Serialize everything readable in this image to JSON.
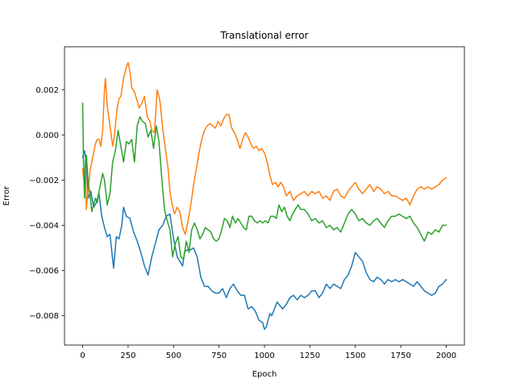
{
  "chart_data": {
    "type": "line",
    "title": "Translational error",
    "xlabel": "Epoch",
    "ylabel": "Error",
    "xlim": [
      -100,
      2100
    ],
    "ylim": [
      -0.0093,
      0.0039
    ],
    "xticks": [
      0,
      250,
      500,
      750,
      1000,
      1250,
      1500,
      1750,
      2000
    ],
    "xtick_labels": [
      "0",
      "250",
      "500",
      "750",
      "1000",
      "1250",
      "1500",
      "1750",
      "2000"
    ],
    "yticks": [
      -0.008,
      -0.006,
      -0.004,
      -0.002,
      0.0,
      0.002
    ],
    "ytick_labels": [
      "−0.008",
      "−0.006",
      "−0.004",
      "−0.002",
      "0.000",
      "0.002"
    ],
    "grid": false,
    "legend": false,
    "series": [
      {
        "color": "#1f77b4",
        "x": [
          0,
          10,
          20,
          30,
          45,
          60,
          75,
          90,
          105,
          120,
          135,
          150,
          170,
          185,
          200,
          215,
          225,
          240,
          260,
          280,
          300,
          320,
          340,
          360,
          380,
          400,
          420,
          440,
          460,
          480,
          500,
          520,
          535,
          550,
          560,
          570,
          590,
          610,
          630,
          650,
          670,
          690,
          710,
          730,
          750,
          770,
          790,
          810,
          830,
          850,
          870,
          890,
          910,
          930,
          950,
          970,
          990,
          1000,
          1010,
          1020,
          1030,
          1040,
          1050,
          1060,
          1070,
          1080,
          1100,
          1120,
          1140,
          1160,
          1180,
          1200,
          1220,
          1240,
          1260,
          1280,
          1300,
          1320,
          1340,
          1360,
          1380,
          1400,
          1420,
          1440,
          1460,
          1480,
          1500,
          1520,
          1540,
          1560,
          1580,
          1600,
          1620,
          1640,
          1660,
          1680,
          1700,
          1720,
          1740,
          1760,
          1780,
          1800,
          1820,
          1840,
          1860,
          1880,
          1900,
          1920,
          1940,
          1960,
          1980,
          2000
        ],
        "values": [
          -0.001,
          -0.0007,
          -0.0012,
          -0.0028,
          -0.0025,
          -0.0032,
          -0.003,
          -0.0026,
          -0.0036,
          -0.0041,
          -0.0045,
          -0.0044,
          -0.0059,
          -0.0045,
          -0.0046,
          -0.004,
          -0.0032,
          -0.0036,
          -0.0037,
          -0.0043,
          -0.0047,
          -0.0052,
          -0.0058,
          -0.0062,
          -0.0054,
          -0.0048,
          -0.0042,
          -0.004,
          -0.0036,
          -0.0035,
          -0.0046,
          -0.0054,
          -0.0056,
          -0.0058,
          -0.0052,
          -0.0051,
          -0.0051,
          -0.005,
          -0.0054,
          -0.0063,
          -0.0067,
          -0.0067,
          -0.0069,
          -0.007,
          -0.007,
          -0.0068,
          -0.0072,
          -0.0068,
          -0.0066,
          -0.0069,
          -0.0071,
          -0.0071,
          -0.0077,
          -0.0076,
          -0.0078,
          -0.0082,
          -0.0083,
          -0.0086,
          -0.0085,
          -0.0082,
          -0.0079,
          -0.008,
          -0.0078,
          -0.0076,
          -0.0074,
          -0.0075,
          -0.0077,
          -0.0075,
          -0.0072,
          -0.0071,
          -0.0073,
          -0.0071,
          -0.0072,
          -0.0071,
          -0.0069,
          -0.0069,
          -0.0072,
          -0.007,
          -0.0066,
          -0.0068,
          -0.0066,
          -0.0067,
          -0.0068,
          -0.0064,
          -0.0062,
          -0.0058,
          -0.0052,
          -0.0054,
          -0.0056,
          -0.0061,
          -0.0064,
          -0.0065,
          -0.0063,
          -0.0064,
          -0.0066,
          -0.0064,
          -0.0065,
          -0.0064,
          -0.0065,
          -0.0064,
          -0.0065,
          -0.0066,
          -0.0067,
          -0.0065,
          -0.0067,
          -0.0069,
          -0.007,
          -0.0071,
          -0.007,
          -0.0067,
          -0.0066,
          -0.0064
        ]
      },
      {
        "color": "#ff7f0e",
        "x": [
          0,
          5,
          10,
          15,
          20,
          25,
          30,
          40,
          50,
          60,
          70,
          80,
          90,
          100,
          110,
          120,
          125,
          135,
          150,
          165,
          175,
          190,
          200,
          210,
          225,
          240,
          250,
          260,
          270,
          285,
          300,
          310,
          325,
          340,
          355,
          370,
          380,
          395,
          410,
          425,
          440,
          455,
          470,
          480,
          490,
          505,
          520,
          535,
          550,
          565,
          580,
          595,
          610,
          625,
          640,
          655,
          670,
          685,
          700,
          715,
          730,
          745,
          760,
          775,
          790,
          805,
          820,
          835,
          850,
          865,
          880,
          895,
          910,
          925,
          940,
          955,
          970,
          985,
          1000,
          1015,
          1030,
          1045,
          1060,
          1075,
          1090,
          1105,
          1120,
          1140,
          1160,
          1180,
          1200,
          1220,
          1240,
          1260,
          1280,
          1300,
          1320,
          1340,
          1360,
          1380,
          1400,
          1420,
          1440,
          1460,
          1480,
          1500,
          1520,
          1540,
          1560,
          1580,
          1600,
          1620,
          1640,
          1660,
          1680,
          1700,
          1720,
          1740,
          1760,
          1780,
          1800,
          1820,
          1840,
          1860,
          1880,
          1900,
          1920,
          1940,
          1960,
          1980,
          2000
        ],
        "values": [
          -0.0015,
          -0.0019,
          -0.002,
          -0.0013,
          -0.0033,
          -0.0028,
          -0.0025,
          -0.0016,
          -0.0012,
          -0.0008,
          -0.0004,
          -0.0002,
          -0.0002,
          -0.0005,
          0.0002,
          0.002,
          0.0025,
          0.0013,
          0.0004,
          -0.0005,
          0.0,
          0.0012,
          0.0016,
          0.0017,
          0.0025,
          0.003,
          0.0032,
          0.0028,
          0.0021,
          0.0019,
          0.0015,
          0.0012,
          0.0014,
          0.0017,
          0.0008,
          0.0006,
          0.0002,
          0.0001,
          0.002,
          0.0015,
          0.0003,
          -0.0006,
          -0.0015,
          -0.0025,
          -0.003,
          -0.0035,
          -0.0032,
          -0.0034,
          -0.0041,
          -0.0044,
          -0.0038,
          -0.0031,
          -0.0022,
          -0.0015,
          -0.0008,
          -0.0002,
          0.0002,
          0.0004,
          0.0005,
          0.0004,
          0.0003,
          0.0006,
          0.0004,
          0.0007,
          0.0009,
          0.0009,
          0.0003,
          0.0001,
          -0.0002,
          -0.0006,
          -0.0002,
          0.0001,
          -0.0001,
          -0.0004,
          -0.0006,
          -0.0005,
          -0.0007,
          -0.0006,
          -0.0008,
          -0.0012,
          -0.0018,
          -0.0022,
          -0.0021,
          -0.0023,
          -0.0021,
          -0.0023,
          -0.0027,
          -0.0025,
          -0.0029,
          -0.0027,
          -0.0026,
          -0.0025,
          -0.0027,
          -0.0025,
          -0.0026,
          -0.0025,
          -0.0028,
          -0.0027,
          -0.0029,
          -0.0025,
          -0.0024,
          -0.0027,
          -0.0028,
          -0.0025,
          -0.0023,
          -0.0021,
          -0.0024,
          -0.0026,
          -0.0024,
          -0.0022,
          -0.0025,
          -0.0023,
          -0.0024,
          -0.0026,
          -0.0025,
          -0.0027,
          -0.0027,
          -0.0028,
          -0.0029,
          -0.0028,
          -0.0031,
          -0.0027,
          -0.0024,
          -0.0023,
          -0.0024,
          -0.0023,
          -0.0024,
          -0.0023,
          -0.0022,
          -0.002,
          -0.0019
        ]
      },
      {
        "color": "#2ca02c",
        "x": [
          0,
          5,
          10,
          15,
          20,
          30,
          40,
          50,
          60,
          70,
          80,
          90,
          100,
          110,
          120,
          135,
          150,
          165,
          180,
          195,
          210,
          225,
          240,
          255,
          270,
          285,
          300,
          315,
          330,
          345,
          360,
          375,
          390,
          405,
          420,
          435,
          450,
          465,
          480,
          495,
          510,
          525,
          540,
          555,
          570,
          585,
          600,
          615,
          630,
          645,
          660,
          675,
          690,
          705,
          720,
          735,
          750,
          765,
          780,
          795,
          810,
          825,
          840,
          855,
          870,
          885,
          900,
          915,
          930,
          945,
          960,
          975,
          990,
          1005,
          1020,
          1035,
          1050,
          1065,
          1080,
          1095,
          1110,
          1125,
          1140,
          1155,
          1170,
          1185,
          1200,
          1220,
          1240,
          1260,
          1280,
          1300,
          1320,
          1340,
          1360,
          1380,
          1400,
          1420,
          1440,
          1460,
          1480,
          1500,
          1520,
          1540,
          1560,
          1580,
          1600,
          1620,
          1640,
          1660,
          1680,
          1700,
          1720,
          1740,
          1760,
          1780,
          1800,
          1820,
          1840,
          1860,
          1880,
          1900,
          1920,
          1940,
          1960,
          1980,
          2000
        ],
        "values": [
          0.0014,
          -0.0015,
          -0.0028,
          -0.0012,
          -0.0009,
          -0.0021,
          -0.0026,
          -0.0034,
          -0.0031,
          -0.0028,
          -0.003,
          -0.0025,
          -0.0021,
          -0.0017,
          -0.002,
          -0.0031,
          -0.0026,
          -0.0012,
          -0.0007,
          0.0002,
          -0.0005,
          -0.0012,
          -0.0003,
          -0.0004,
          -0.0002,
          -0.0012,
          0.0004,
          0.0008,
          0.0006,
          0.0005,
          -0.0001,
          0.0002,
          -0.0006,
          0.0004,
          -0.0003,
          -0.0019,
          -0.0033,
          -0.0038,
          -0.0042,
          -0.0054,
          -0.0048,
          -0.0045,
          -0.0054,
          -0.0055,
          -0.0047,
          -0.0052,
          -0.0042,
          -0.0039,
          -0.0042,
          -0.0046,
          -0.0044,
          -0.0041,
          -0.0042,
          -0.0043,
          -0.0046,
          -0.0047,
          -0.0046,
          -0.0042,
          -0.0037,
          -0.0038,
          -0.0041,
          -0.0036,
          -0.0039,
          -0.0037,
          -0.0039,
          -0.0041,
          -0.0042,
          -0.0036,
          -0.0036,
          -0.0038,
          -0.0039,
          -0.0038,
          -0.0039,
          -0.0038,
          -0.0039,
          -0.0036,
          -0.0036,
          -0.0037,
          -0.0031,
          -0.0034,
          -0.0032,
          -0.0036,
          -0.0038,
          -0.0035,
          -0.0033,
          -0.0031,
          -0.0033,
          -0.0033,
          -0.0035,
          -0.0038,
          -0.0037,
          -0.0039,
          -0.0038,
          -0.0041,
          -0.004,
          -0.0042,
          -0.0041,
          -0.0043,
          -0.0039,
          -0.0035,
          -0.0033,
          -0.0035,
          -0.0038,
          -0.0037,
          -0.0039,
          -0.004,
          -0.0038,
          -0.0037,
          -0.0039,
          -0.0041,
          -0.0038,
          -0.0036,
          -0.0036,
          -0.0035,
          -0.0036,
          -0.0037,
          -0.0036,
          -0.0039,
          -0.0041,
          -0.0044,
          -0.0047,
          -0.0043,
          -0.0044,
          -0.0042,
          -0.0043,
          -0.004,
          -0.004
        ]
      }
    ]
  }
}
